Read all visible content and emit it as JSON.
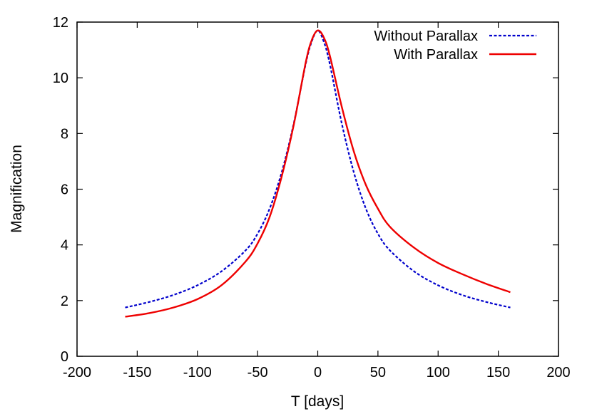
{
  "chart_data": {
    "type": "line",
    "xlabel": "T [days]",
    "ylabel": "Magnification",
    "xlim": [
      -200,
      200
    ],
    "ylim": [
      0,
      12
    ],
    "xticks": [
      -200,
      -150,
      -100,
      -50,
      0,
      50,
      100,
      150,
      200
    ],
    "yticks": [
      0,
      2,
      4,
      6,
      8,
      10,
      12
    ],
    "grid": false,
    "legend_position": "top-right",
    "series": [
      {
        "name": "Without Parallax",
        "color": "#0000cc",
        "dash": "dashed",
        "x": [
          -160,
          -140,
          -120,
          -100,
          -80,
          -60,
          -50,
          -40,
          -30,
          -20,
          -10,
          -5,
          0,
          5,
          10,
          20,
          30,
          40,
          50,
          60,
          80,
          100,
          120,
          140,
          160
        ],
        "y": [
          1.75,
          1.95,
          2.2,
          2.55,
          3.05,
          3.8,
          4.4,
          5.3,
          6.6,
          8.35,
          10.5,
          11.3,
          11.7,
          11.3,
          10.5,
          8.35,
          6.6,
          5.3,
          4.4,
          3.8,
          3.05,
          2.55,
          2.2,
          1.95,
          1.75
        ]
      },
      {
        "name": "With Parallax",
        "color": "#ee0000",
        "dash": "solid",
        "x": [
          -160,
          -140,
          -120,
          -100,
          -80,
          -60,
          -50,
          -40,
          -30,
          -20,
          -10,
          -5,
          0,
          5,
          10,
          20,
          30,
          40,
          50,
          60,
          80,
          100,
          120,
          140,
          160
        ],
        "y": [
          1.42,
          1.55,
          1.75,
          2.05,
          2.55,
          3.4,
          4.05,
          5.0,
          6.45,
          8.3,
          10.55,
          11.35,
          11.7,
          11.45,
          10.8,
          8.95,
          7.35,
          6.15,
          5.3,
          4.65,
          3.9,
          3.35,
          2.95,
          2.6,
          2.3
        ]
      }
    ]
  }
}
